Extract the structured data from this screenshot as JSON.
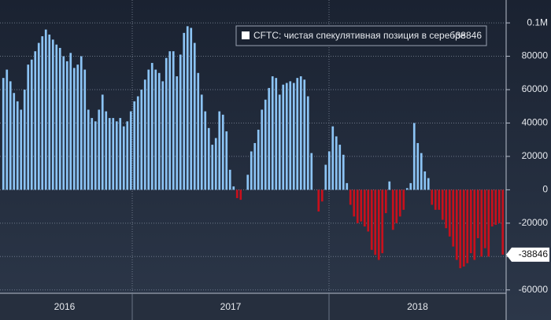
{
  "chart_data": {
    "type": "bar",
    "series": [
      {
        "name": "CFTC: чистая спекулятивная позиция в серебре",
        "color_positive": "#8cc4f5",
        "color_negative": "#c8101c",
        "values": [
          67000,
          72000,
          65000,
          58000,
          53000,
          48000,
          60000,
          75000,
          78000,
          83000,
          88000,
          92000,
          96000,
          93000,
          90000,
          87000,
          85000,
          80000,
          77000,
          82000,
          73000,
          75000,
          80000,
          72000,
          48000,
          43000,
          41000,
          48000,
          57000,
          47000,
          43000,
          43000,
          41000,
          43000,
          38000,
          41000,
          47000,
          53000,
          56000,
          60000,
          66000,
          72000,
          76000,
          72000,
          70000,
          65000,
          79000,
          83000,
          83000,
          68000,
          81000,
          94000,
          98000,
          97000,
          88000,
          70000,
          57000,
          47000,
          37000,
          27000,
          31000,
          47000,
          45000,
          35000,
          12000,
          2000,
          -5000,
          -6000,
          0,
          9000,
          23000,
          28000,
          36000,
          48000,
          54000,
          61000,
          68000,
          67000,
          57000,
          63000,
          64000,
          65000,
          64000,
          67000,
          68000,
          66000,
          56000,
          22000,
          0,
          -13000,
          -7000,
          15000,
          23000,
          38000,
          32000,
          27000,
          21000,
          4000,
          -9000,
          -16000,
          -20000,
          -19000,
          -22000,
          -25000,
          -36000,
          -39000,
          -42000,
          -38000,
          -14000,
          5000,
          -24000,
          -20000,
          -16000,
          -12000,
          1000,
          4000,
          40000,
          28000,
          22000,
          11000,
          7000,
          -9000,
          -12000,
          -12000,
          -18000,
          -23000,
          -28000,
          -34000,
          -42000,
          -47000,
          -46000,
          -44000,
          -38000,
          -42000,
          -29000,
          -40000,
          -35000,
          -40000,
          -22000,
          -21000,
          -20000,
          -38846
        ]
      }
    ],
    "year_labels": [
      "2016",
      "2017",
      "2018"
    ],
    "ylim": [
      -62000,
      109000
    ],
    "yticks": [
      -60000,
      -40000,
      -20000,
      0,
      20000,
      40000,
      60000,
      80000,
      {
        "value": 100000,
        "label": "0.1M"
      }
    ],
    "grid": true
  }
}
